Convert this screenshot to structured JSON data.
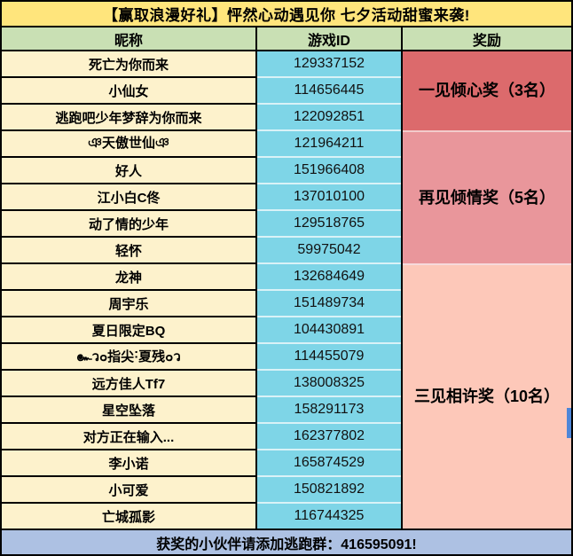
{
  "title": "【赢取浪漫好礼】怦然心动遇见你 七夕活动甜蜜来袭!",
  "columns": [
    "昵称",
    "游戏ID",
    "奖励"
  ],
  "rows": [
    {
      "nickname": "死亡为你而来",
      "game_id": "129337152"
    },
    {
      "nickname": "小仙女",
      "game_id": "114656445"
    },
    {
      "nickname": "逃跑吧少年梦辞为你而来",
      "game_id": "122092851"
    },
    {
      "nickname": "ঞ天傲世仙ঞ",
      "game_id": "121964211"
    },
    {
      "nickname": "好人",
      "game_id": "151966408"
    },
    {
      "nickname": "江小白C佟",
      "game_id": "137010100"
    },
    {
      "nickname": "动了情的少年",
      "game_id": "129518765"
    },
    {
      "nickname": "轻怀",
      "game_id": "59975042"
    },
    {
      "nickname": "龙神",
      "game_id": "132684649"
    },
    {
      "nickname": "周宇乐",
      "game_id": "151489734"
    },
    {
      "nickname": "夏日限定BQ",
      "game_id": "104430891"
    },
    {
      "nickname": "๛ว๐指尖˸夏残๐ว",
      "game_id": "114455079"
    },
    {
      "nickname": "远方佳人Tf7",
      "game_id": "138008325"
    },
    {
      "nickname": "星空坠落",
      "game_id": "158291173"
    },
    {
      "nickname": "对方正在输入...",
      "game_id": "162377802"
    },
    {
      "nickname": "李小诺",
      "game_id": "165874529"
    },
    {
      "nickname": "小可爱",
      "game_id": "150821892"
    },
    {
      "nickname": "亡城孤影",
      "game_id": "116744325"
    }
  ],
  "prizes": [
    {
      "label": "一见倾心奖（3名）",
      "winner_count": 3,
      "color": "#DC6A6C"
    },
    {
      "label": "再见倾情奖（5名）",
      "winner_count": 5,
      "color": "#E9969B"
    },
    {
      "label": "三见相许奖（10名）",
      "winner_count": 10,
      "color": "#FDC8B9"
    }
  ],
  "footer": "获奖的小伙伴请添加逃跑群：416595091!",
  "colors": {
    "title_bg": "#FFE57C",
    "header_bg": "#C9E0B4",
    "nickname_col_bg": "#FDF2CC",
    "id_col_bg": "#7ED5E7",
    "prize_tier1_bg": "#DC6A6C",
    "prize_tier2_bg": "#E9969B",
    "prize_tier3_bg": "#FDC8B9",
    "footer_bg": "#ADC1E3",
    "border": "#000000",
    "scrollbar_accent": "#4E86D8"
  }
}
